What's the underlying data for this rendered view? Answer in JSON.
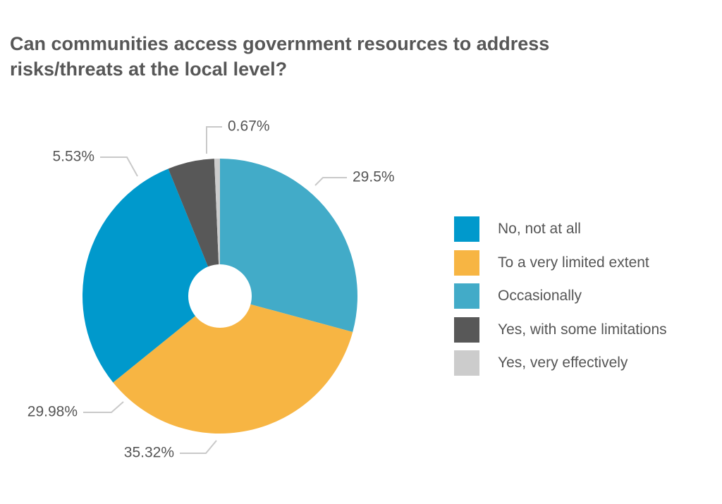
{
  "title_lines": [
    "Can communities access government resources to address",
    "risks/threats at the local level?"
  ],
  "colors": {
    "no_not_at_all": "#0099cc",
    "to_a_very_limited_extent": "#f7b543",
    "occasionally": "#42abc8",
    "yes_with_some_limitations": "#585858",
    "yes_very_effectively": "#cccccc",
    "leader_line": "#c9c9c9"
  },
  "chart_data": {
    "type": "pie",
    "title": "Can communities access government resources to address risks/threats at the local level?",
    "legend_position": "right",
    "donut_hole": true,
    "slices": [
      {
        "label": "No, not at all",
        "value": 29.98,
        "value_label": "29.98%",
        "color": "#0099cc"
      },
      {
        "label": "To a very limited extent",
        "value": 35.32,
        "value_label": "35.32%",
        "color": "#f7b543"
      },
      {
        "label": "Occasionally",
        "value": 29.5,
        "value_label": "29.5%",
        "color": "#42abc8"
      },
      {
        "label": "Yes, with some limitations",
        "value": 5.53,
        "value_label": "5.53%",
        "color": "#585858"
      },
      {
        "label": "Yes, very effectively",
        "value": 0.67,
        "value_label": "0.67%",
        "color": "#cccccc"
      }
    ]
  }
}
